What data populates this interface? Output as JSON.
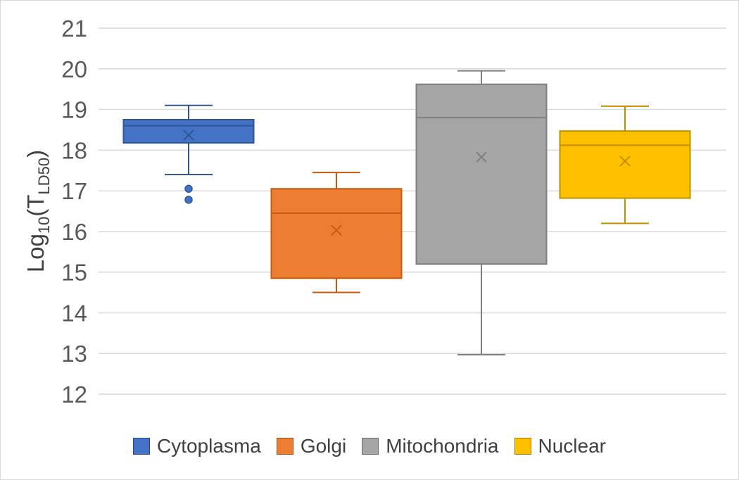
{
  "chart_data": {
    "type": "box",
    "title": "",
    "xlabel": "",
    "ylabel": {
      "main": "Log",
      "sub": "10",
      "paren_open": "(T",
      "subscript": "LD50",
      "paren_close": ")"
    },
    "ylim": [
      12,
      21
    ],
    "yticks": [
      "12",
      "13",
      "14",
      "15",
      "16",
      "17",
      "18",
      "19",
      "20",
      "21"
    ],
    "grid": true,
    "legend_position": "bottom",
    "series": [
      {
        "name": "Cytoplasma",
        "color": "#4472C4",
        "stroke": "#2F5597",
        "whisker_low": 17.4,
        "q1": 18.18,
        "median": 18.6,
        "q3": 18.75,
        "whisker_high": 19.1,
        "mean": 18.37,
        "outliers": [
          17.05,
          16.78
        ]
      },
      {
        "name": "Golgi",
        "color": "#ED7D31",
        "stroke": "#C55A11",
        "whisker_low": 14.5,
        "q1": 14.85,
        "median": 16.45,
        "q3": 17.05,
        "whisker_high": 17.45,
        "mean": 16.03,
        "outliers": []
      },
      {
        "name": "Mitochondria",
        "color": "#A5A5A5",
        "stroke": "#7F7F7F",
        "whisker_low": 12.97,
        "q1": 15.2,
        "median": 18.8,
        "q3": 19.62,
        "whisker_high": 19.95,
        "mean": 17.83,
        "outliers": []
      },
      {
        "name": "Nuclear",
        "color": "#FFC000",
        "stroke": "#BF9000",
        "whisker_low": 16.2,
        "q1": 16.82,
        "median": 18.12,
        "q3": 18.47,
        "whisker_high": 19.08,
        "mean": 17.73,
        "outliers": []
      }
    ]
  }
}
